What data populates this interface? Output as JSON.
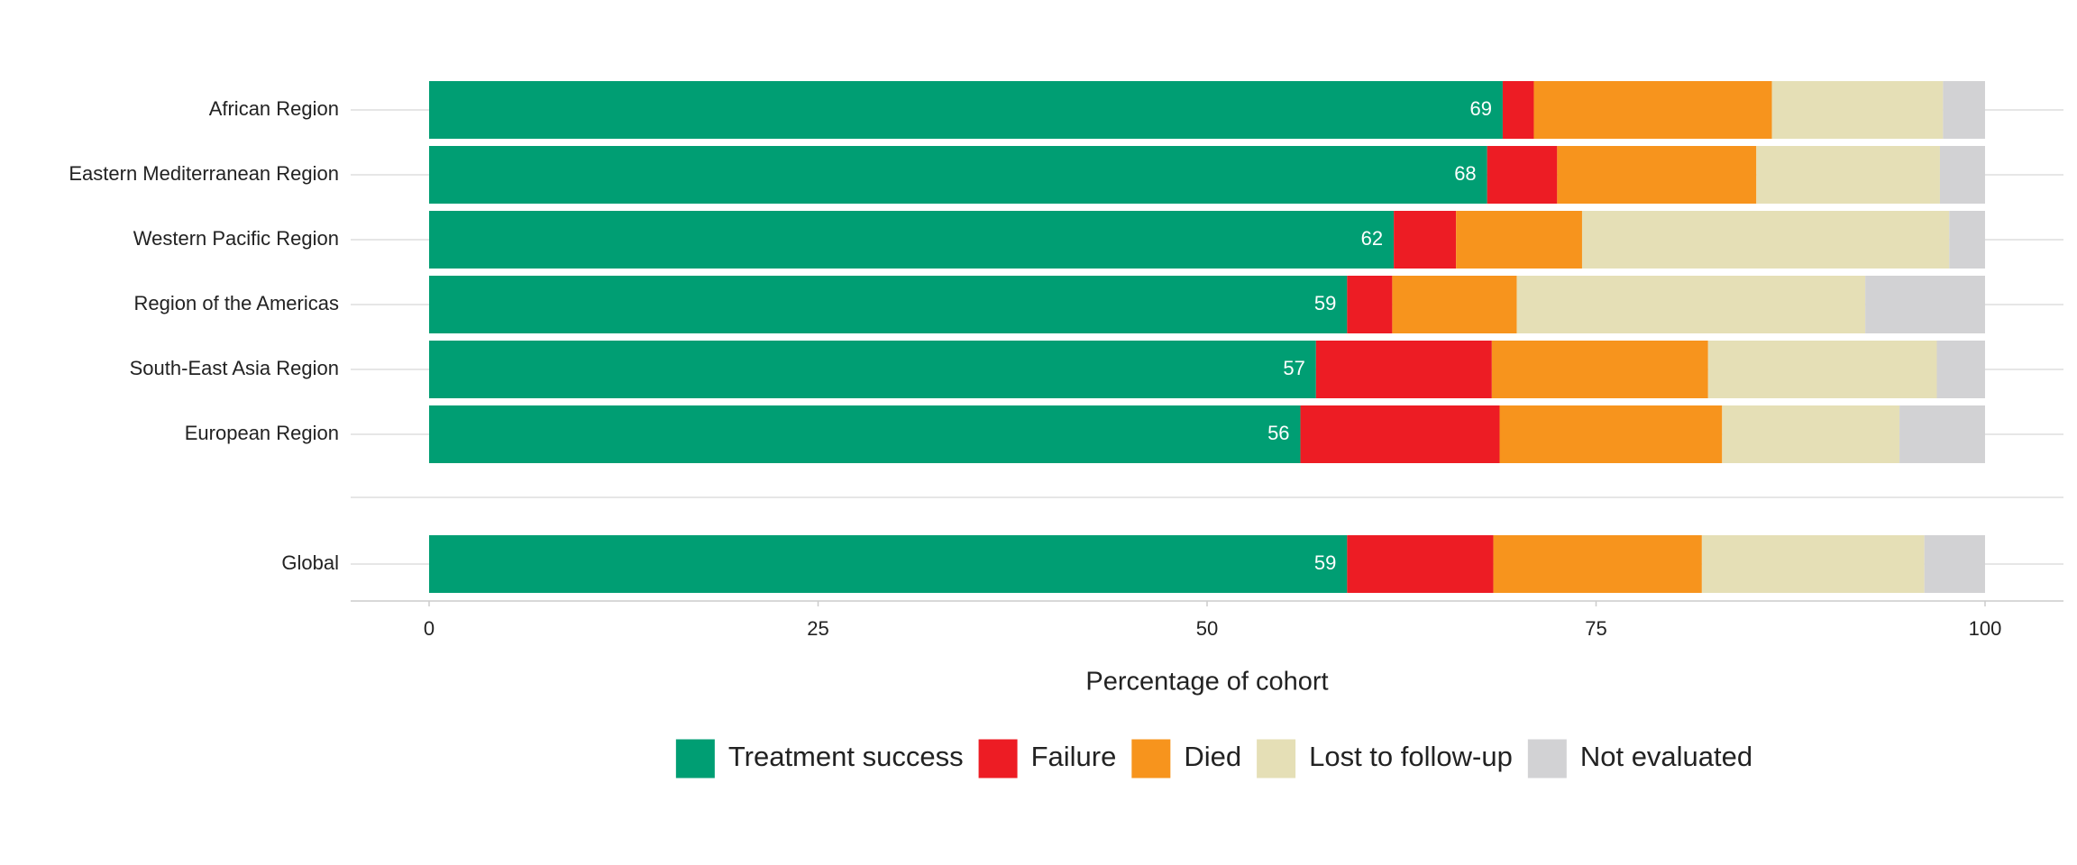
{
  "chart_data": {
    "type": "stacked-bar-horizontal",
    "x_label": "Percentage of cohort",
    "categories": [
      "African Region",
      "Eastern Mediterranean Region",
      "Western Pacific Region",
      "Region of the Americas",
      "South-East Asia Region",
      "European Region",
      "Global"
    ],
    "series": [
      {
        "name": "Treatment success",
        "color": "#009e73",
        "values": [
          69,
          68,
          62,
          59,
          57,
          56,
          59
        ]
      },
      {
        "name": "Failure",
        "color": "#ed1c24",
        "values": [
          2,
          4.5,
          4,
          2.9,
          11.3,
          12.8,
          9.4
        ]
      },
      {
        "name": "Died",
        "color": "#f7941d",
        "values": [
          15.3,
          12.8,
          8.1,
          8,
          13.9,
          14.3,
          13.4
        ]
      },
      {
        "name": "Lost to follow-up",
        "color": "#e5dfb6",
        "values": [
          11,
          11.8,
          23.6,
          22.4,
          14.7,
          11.4,
          14.3
        ]
      },
      {
        "name": "Not evaluated",
        "color": "#d2d2d4",
        "values": [
          2.7,
          2.9,
          2.3,
          7.7,
          3.1,
          5.5,
          3.9
        ]
      }
    ],
    "xlim": [
      0,
      100
    ],
    "xticks": [
      0,
      25,
      50,
      75,
      100
    ],
    "legend": "bottom"
  }
}
